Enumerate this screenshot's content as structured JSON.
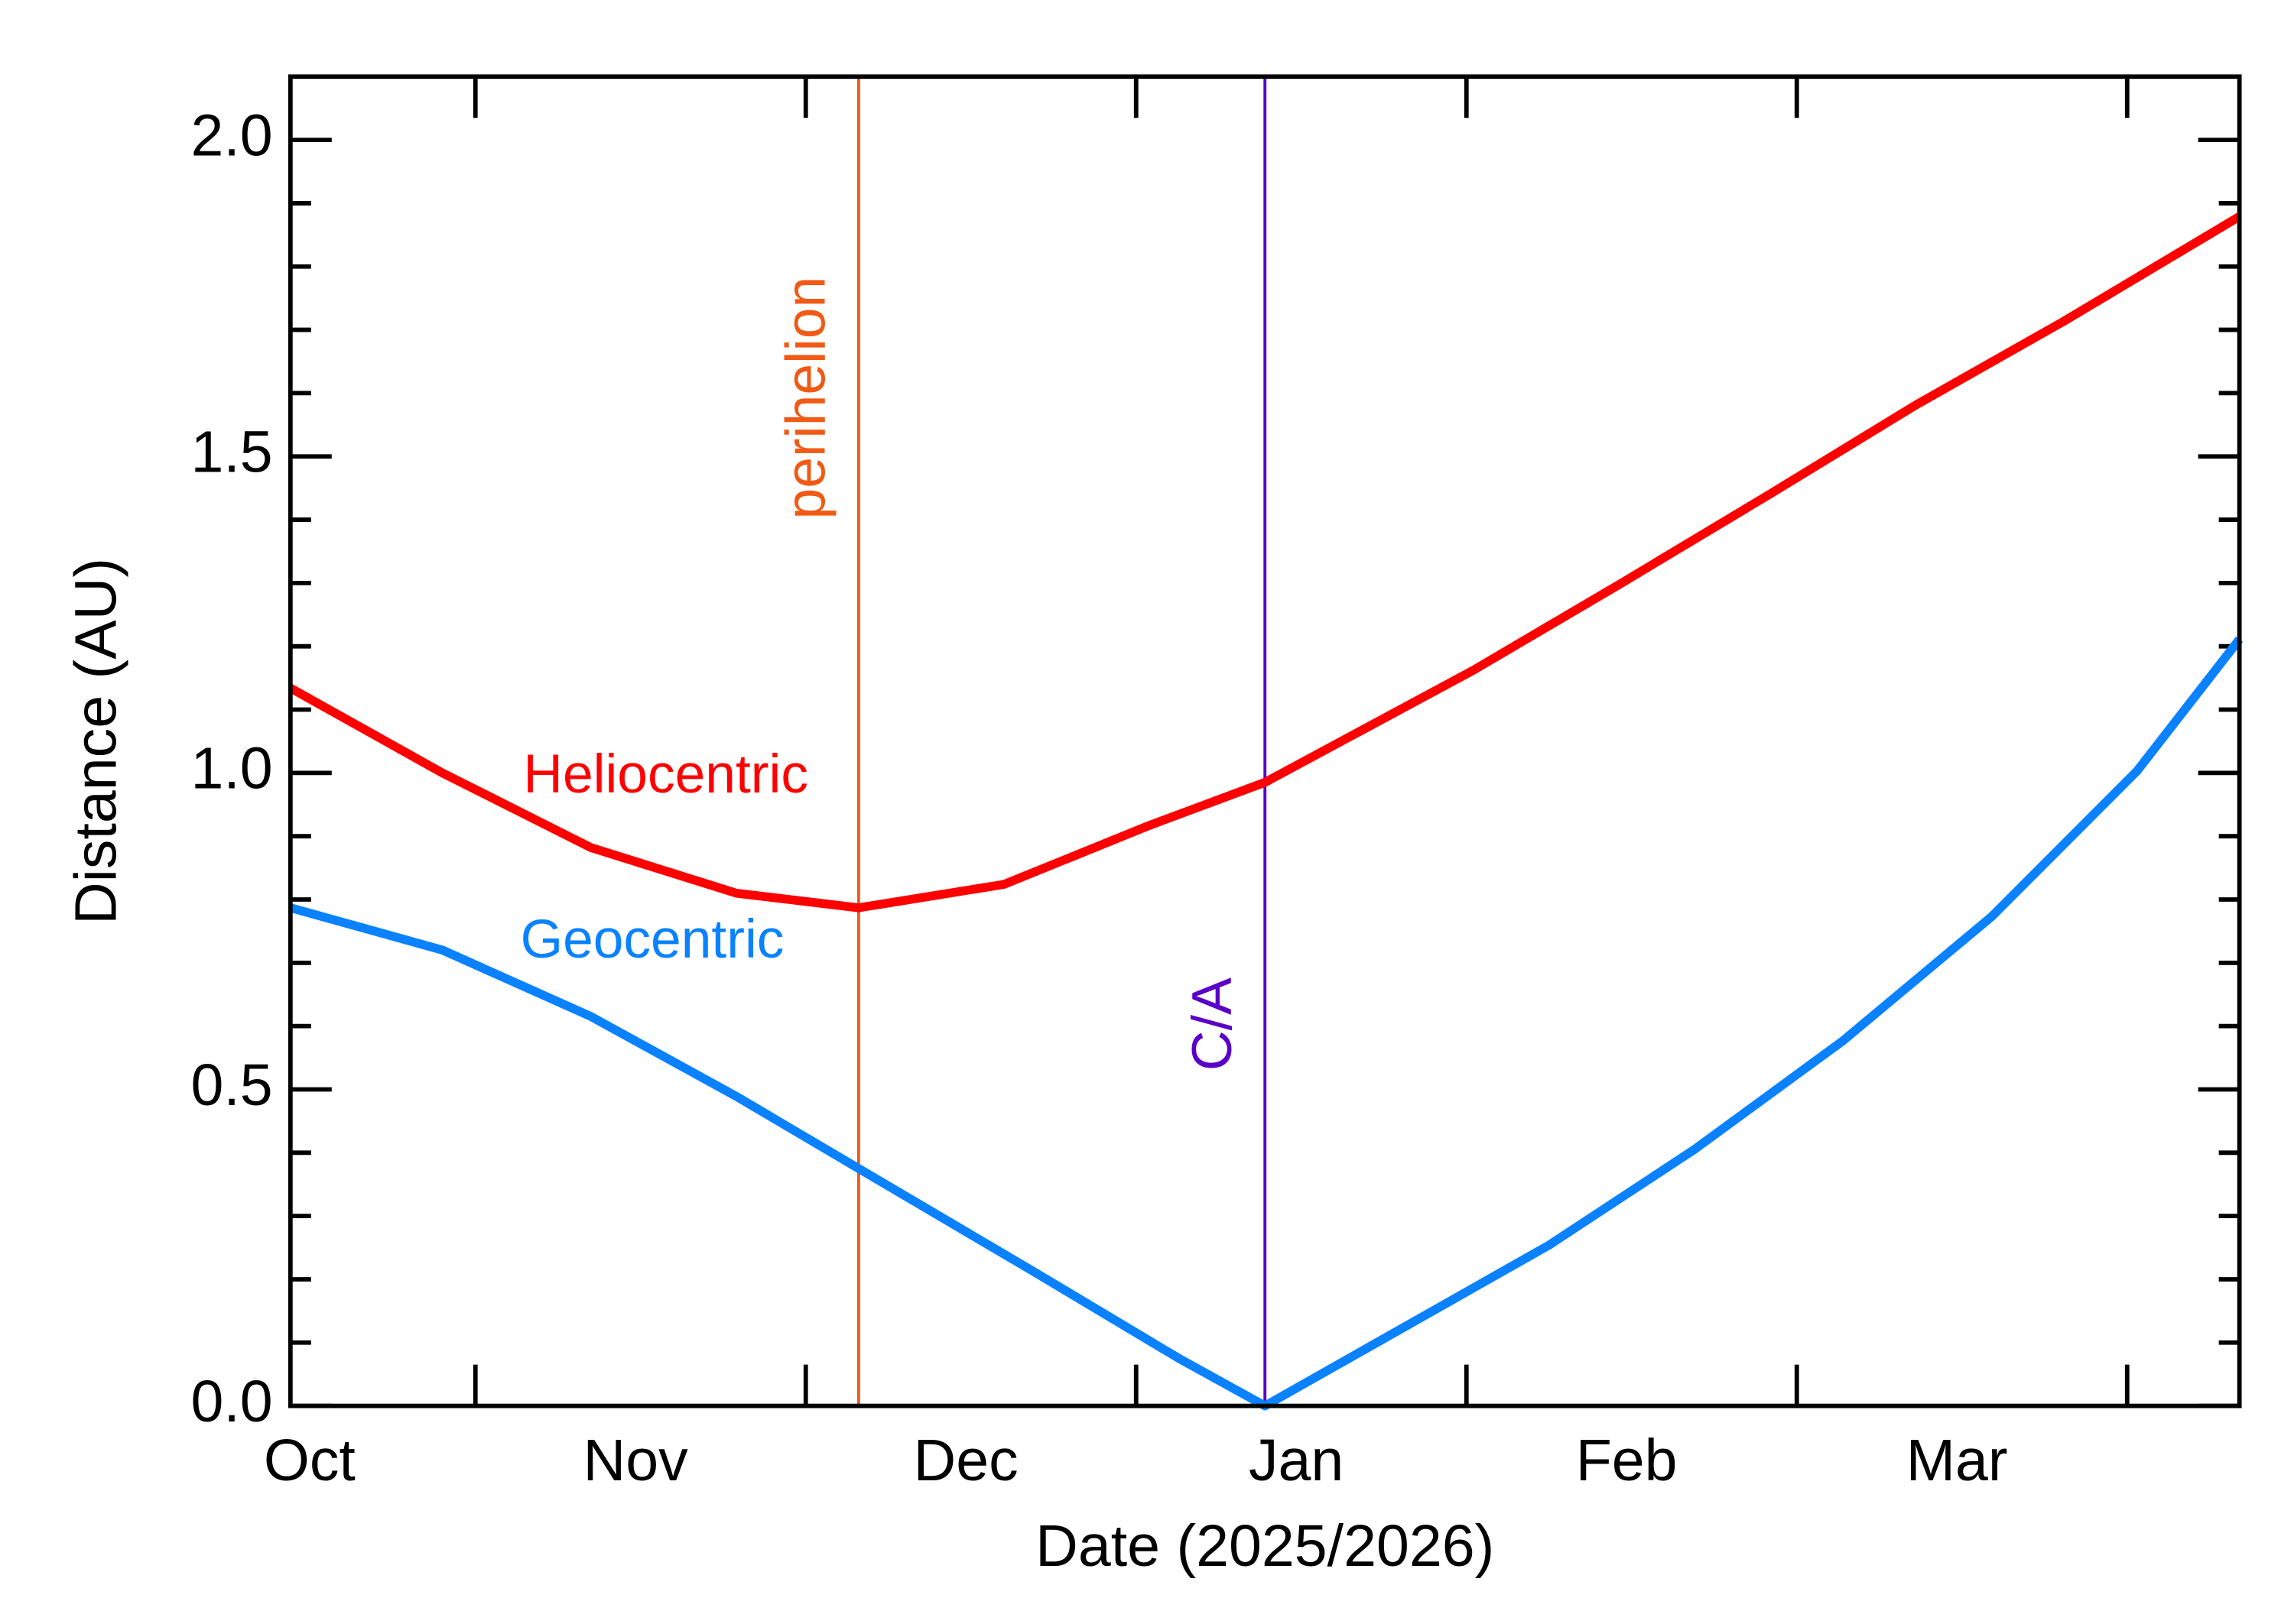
{
  "chart_data": {
    "type": "line",
    "xlabel": "Date (2025/2026)",
    "ylabel": "Distance (AU)",
    "xlim": [
      0,
      5.9
    ],
    "ylim": [
      0,
      2.1
    ],
    "xticks": [
      {
        "value": 0,
        "label": "Oct"
      },
      {
        "value": 1,
        "label": "Nov"
      },
      {
        "value": 2,
        "label": "Dec"
      },
      {
        "value": 3,
        "label": "Jan"
      },
      {
        "value": 4,
        "label": "Feb"
      },
      {
        "value": 5,
        "label": "Mar"
      }
    ],
    "yticks": [
      {
        "value": 0,
        "label": "0.0"
      },
      {
        "value": 0.5,
        "label": "0.5"
      },
      {
        "value": 1,
        "label": "1.0"
      },
      {
        "value": 1.5,
        "label": "1.5"
      },
      {
        "value": 2,
        "label": "2.0"
      }
    ],
    "series": [
      {
        "name": "Heliocentric",
        "color": "#ff0000",
        "x": [
          0,
          0.46,
          0.91,
          1.35,
          1.72,
          2.16,
          2.6,
          2.95,
          3.58,
          4.03,
          4.48,
          4.92,
          5.37,
          5.9
        ],
        "values": [
          1.134,
          1.0,
          0.882,
          0.81,
          0.787,
          0.824,
          0.917,
          0.985,
          1.162,
          1.3,
          1.441,
          1.581,
          1.714,
          1.879
        ]
      },
      {
        "name": "Geocentric",
        "color": "#0a82ff",
        "x": [
          0,
          0.46,
          0.91,
          1.35,
          1.72,
          2.25,
          2.69,
          2.95,
          3.36,
          3.81,
          4.25,
          4.7,
          5.15,
          5.59,
          5.9
        ],
        "values": [
          0.787,
          0.72,
          0.615,
          0.489,
          0.375,
          0.212,
          0.075,
          0.0,
          0.121,
          0.254,
          0.405,
          0.577,
          0.773,
          1.003,
          1.211
        ]
      }
    ],
    "annotations": [
      {
        "label": "perihelion",
        "x": 1.72,
        "color": "#f05a14"
      },
      {
        "label": "C/A",
        "x": 2.95,
        "color": "#5a00c8"
      }
    ]
  }
}
